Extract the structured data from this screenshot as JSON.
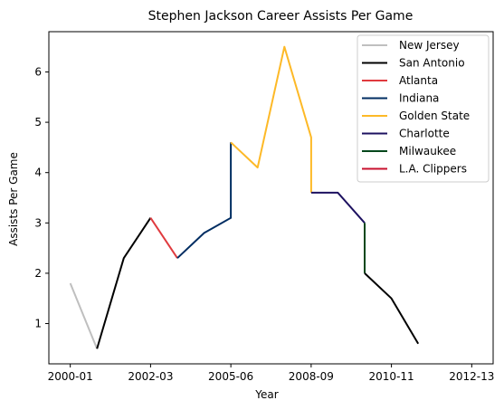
{
  "chart_data": {
    "type": "line",
    "title": "Stephen Jackson Career Assists Per Game",
    "xlabel": "Year",
    "ylabel": "Assists Per Game",
    "x_tick_labels": [
      "2000-01",
      "2002-03",
      "2005-06",
      "2008-09",
      "2010-11",
      "2012-13"
    ],
    "x_tick_positions": [
      0,
      3,
      6,
      9,
      12,
      15
    ],
    "y_ticks": [
      1,
      2,
      3,
      4,
      5,
      6
    ],
    "xlim": [
      -0.8,
      15.8
    ],
    "ylim": [
      0.2,
      6.8
    ],
    "grid": false,
    "legend_position": "top-right",
    "series": [
      {
        "name": "New Jersey",
        "color": "#bfbfbf",
        "x": [
          0,
          1
        ],
        "y": [
          1.8,
          0.5
        ]
      },
      {
        "name": "San Antonio",
        "color": "#000000",
        "x": [
          1,
          2,
          3
        ],
        "y": [
          0.5,
          2.3,
          3.1
        ]
      },
      {
        "name": "Atlanta",
        "color": "#e03a3e",
        "x": [
          3,
          4
        ],
        "y": [
          3.1,
          2.3
        ]
      },
      {
        "name": "Indiana",
        "color": "#002d62",
        "x": [
          4,
          5,
          6,
          6
        ],
        "y": [
          2.3,
          2.8,
          3.1,
          4.6
        ]
      },
      {
        "name": "Golden State",
        "color": "#fdb927",
        "x": [
          6,
          7,
          8,
          9,
          9
        ],
        "y": [
          4.6,
          4.1,
          6.5,
          4.7,
          3.6
        ]
      },
      {
        "name": "Charlotte",
        "color": "#1d1160",
        "x": [
          9,
          10,
          11
        ],
        "y": [
          3.6,
          3.6,
          3.0
        ]
      },
      {
        "name": "Milwaukee",
        "color": "#00471b",
        "x": [
          11,
          11
        ],
        "y": [
          3.0,
          2.0
        ]
      },
      {
        "name": "San Antonio",
        "color": "#000000",
        "x": [
          11,
          12,
          13
        ],
        "y": [
          2.0,
          1.5,
          0.6
        ],
        "in_legend": false
      },
      {
        "name": "L.A. Clippers",
        "color": "#c8102e",
        "x": [],
        "y": []
      }
    ]
  }
}
